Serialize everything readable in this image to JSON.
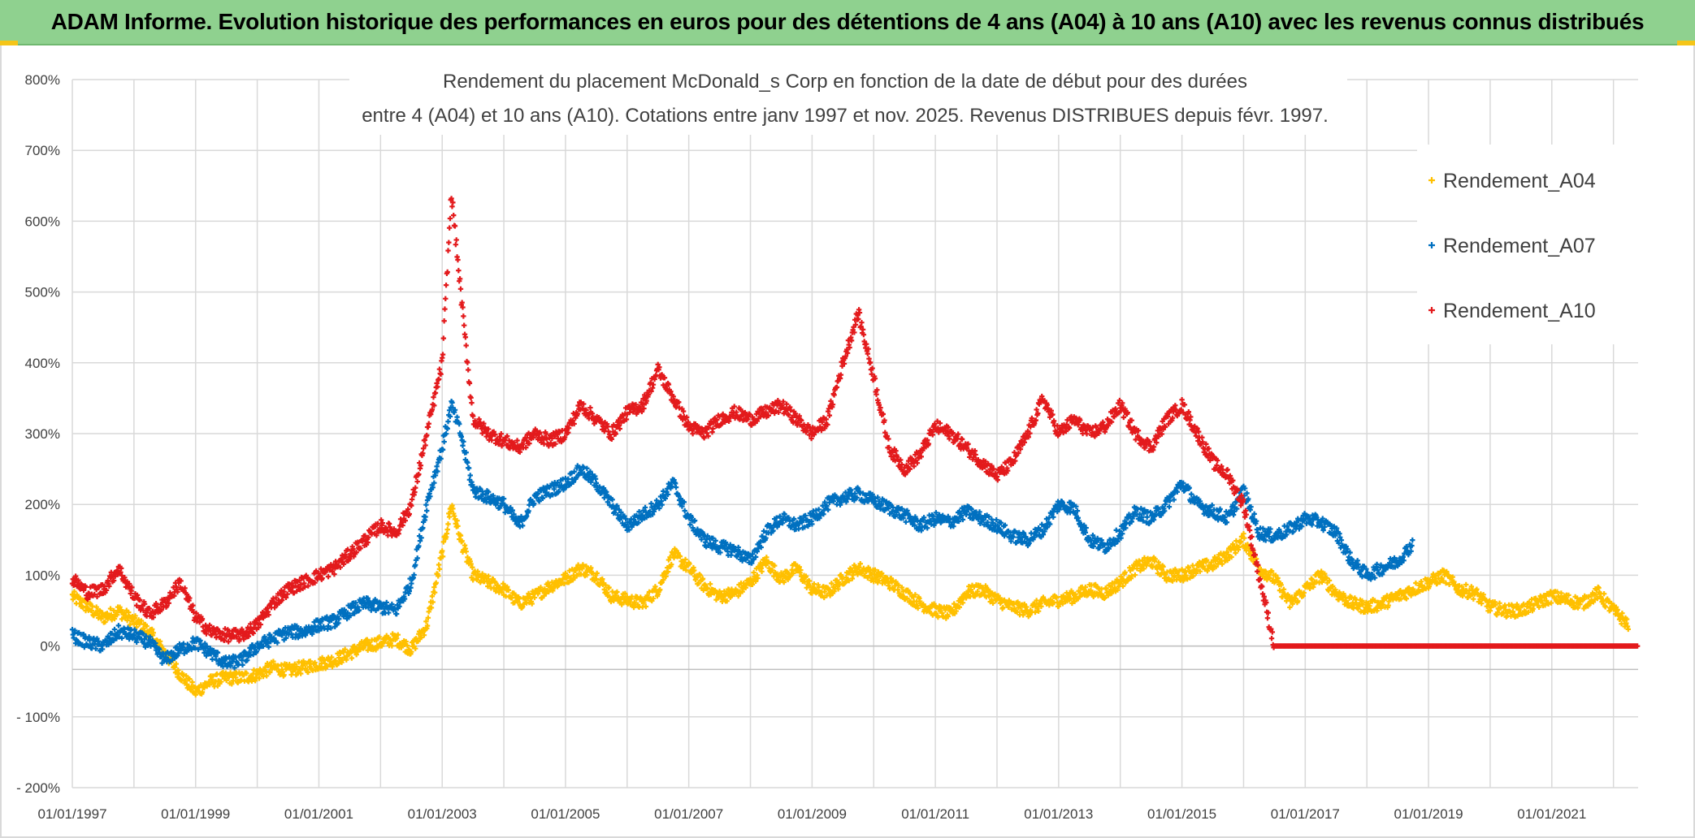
{
  "banner": {
    "text": "ADAM Informe. Evolution historique des performances en euros pour des détentions de 4 ans (A04) à 10 ans (A10) avec les revenus connus distribués"
  },
  "chart_data": {
    "type": "scatter",
    "title_lines": [
      "Rendement du placement McDonald_s Corp en fonction de la date de début pour des durées",
      "entre 4 (A04) et 10 ans (A10). Cotations entre janv 1997 et nov. 2025. Revenus DISTRIBUES depuis févr. 1997."
    ],
    "xlabel": "",
    "ylabel": "",
    "xlim": [
      1997.0,
      2022.4
    ],
    "ylim": [
      -200,
      800
    ],
    "x_tick_labels": [
      "01/01/1997",
      "01/01/1999",
      "01/01/2001",
      "01/01/2003",
      "01/01/2005",
      "01/01/2007",
      "01/01/2009",
      "01/01/2011",
      "01/01/2013",
      "01/01/2015",
      "01/01/2017",
      "01/01/2019",
      "01/01/2021"
    ],
    "x_ticks": [
      1997,
      1999,
      2001,
      2003,
      2005,
      2007,
      2009,
      2011,
      2013,
      2015,
      2017,
      2019,
      2021
    ],
    "minor_x_gridlines": [
      1998,
      2000,
      2002,
      2004,
      2006,
      2008,
      2010,
      2012,
      2014,
      2016,
      2018,
      2020,
      2022
    ],
    "y_ticks": [
      800,
      700,
      600,
      500,
      400,
      300,
      200,
      100,
      0,
      -100,
      -200
    ],
    "y_tick_labels": [
      "800%",
      "700%",
      "600%",
      "500%",
      "400%",
      "300%",
      "200%",
      "100%",
      "0%",
      "- 100%",
      "- 200%"
    ],
    "legend_position": "top-right",
    "series": [
      {
        "name": "Rendement_A04",
        "color": "#ffc000",
        "x": [
          1997.0,
          1997.25,
          1997.5,
          1997.75,
          1998.0,
          1998.25,
          1998.5,
          1998.75,
          1999.0,
          1999.25,
          1999.5,
          1999.75,
          2000.0,
          2000.25,
          2000.5,
          2000.75,
          2001.0,
          2001.25,
          2001.5,
          2001.75,
          2002.0,
          2002.25,
          2002.5,
          2002.75,
          2003.0,
          2003.15,
          2003.3,
          2003.5,
          2003.75,
          2004.0,
          2004.25,
          2004.5,
          2004.75,
          2005.0,
          2005.25,
          2005.5,
          2005.75,
          2006.0,
          2006.25,
          2006.5,
          2006.75,
          2007.0,
          2007.25,
          2007.5,
          2007.75,
          2008.0,
          2008.25,
          2008.5,
          2008.75,
          2009.0,
          2009.25,
          2009.5,
          2009.75,
          2010.0,
          2010.25,
          2010.5,
          2010.75,
          2011.0,
          2011.25,
          2011.5,
          2011.75,
          2012.0,
          2012.25,
          2012.5,
          2012.75,
          2013.0,
          2013.25,
          2013.5,
          2013.75,
          2014.0,
          2014.25,
          2014.5,
          2014.75,
          2015.0,
          2015.25,
          2015.5,
          2015.75,
          2016.0,
          2016.25,
          2016.5,
          2016.75,
          2017.0,
          2017.25,
          2017.5,
          2017.75,
          2018.0,
          2018.25,
          2018.5,
          2018.75,
          2019.0,
          2019.25,
          2019.5,
          2019.75,
          2020.0,
          2020.25,
          2020.5,
          2020.75,
          2021.0,
          2021.25,
          2021.5,
          2021.75,
          2022.0,
          2022.25
        ],
        "y": [
          70,
          55,
          40,
          50,
          35,
          20,
          -10,
          -40,
          -65,
          -50,
          -45,
          -45,
          -40,
          -30,
          -35,
          -30,
          -25,
          -20,
          -10,
          0,
          5,
          10,
          -5,
          30,
          130,
          200,
          150,
          100,
          90,
          80,
          60,
          70,
          85,
          95,
          110,
          100,
          70,
          65,
          60,
          80,
          130,
          110,
          85,
          70,
          75,
          90,
          120,
          95,
          110,
          80,
          75,
          95,
          110,
          100,
          90,
          75,
          60,
          50,
          45,
          75,
          80,
          65,
          55,
          50,
          60,
          65,
          70,
          80,
          75,
          90,
          110,
          120,
          100,
          100,
          110,
          115,
          130,
          150,
          110,
          95,
          60,
          80,
          100,
          75,
          60,
          55,
          60,
          70,
          80,
          90,
          100,
          80,
          75,
          55,
          50,
          50,
          60,
          70,
          65,
          60,
          75,
          50,
          30
        ]
      },
      {
        "name": "Rendement_A07",
        "color": "#0070c0",
        "x": [
          1997.0,
          1997.25,
          1997.5,
          1997.75,
          1998.0,
          1998.25,
          1998.5,
          1998.75,
          1999.0,
          1999.25,
          1999.5,
          1999.75,
          2000.0,
          2000.25,
          2000.5,
          2000.75,
          2001.0,
          2001.25,
          2001.5,
          2001.75,
          2002.0,
          2002.25,
          2002.5,
          2002.75,
          2003.0,
          2003.15,
          2003.3,
          2003.5,
          2003.75,
          2004.0,
          2004.25,
          2004.5,
          2004.75,
          2005.0,
          2005.25,
          2005.5,
          2005.75,
          2006.0,
          2006.25,
          2006.5,
          2006.75,
          2007.0,
          2007.25,
          2007.5,
          2007.75,
          2008.0,
          2008.25,
          2008.5,
          2008.75,
          2009.0,
          2009.25,
          2009.5,
          2009.75,
          2010.0,
          2010.25,
          2010.5,
          2010.75,
          2011.0,
          2011.25,
          2011.5,
          2011.75,
          2012.0,
          2012.25,
          2012.5,
          2012.75,
          2013.0,
          2013.25,
          2013.5,
          2013.75,
          2014.0,
          2014.25,
          2014.5,
          2014.75,
          2015.0,
          2015.25,
          2015.5,
          2015.75,
          2016.0,
          2016.25,
          2016.5,
          2016.75,
          2017.0,
          2017.25,
          2017.5,
          2017.75,
          2018.0,
          2018.25,
          2018.5,
          2018.75
        ],
        "y": [
          15,
          5,
          0,
          20,
          15,
          5,
          -20,
          -5,
          5,
          -10,
          -25,
          -20,
          0,
          10,
          20,
          20,
          30,
          35,
          50,
          60,
          55,
          50,
          90,
          200,
          280,
          340,
          300,
          220,
          210,
          200,
          170,
          210,
          220,
          230,
          250,
          230,
          200,
          170,
          185,
          200,
          230,
          180,
          150,
          140,
          135,
          120,
          160,
          180,
          170,
          180,
          200,
          210,
          215,
          205,
          195,
          185,
          170,
          180,
          175,
          190,
          180,
          170,
          155,
          150,
          165,
          200,
          195,
          150,
          140,
          160,
          190,
          180,
          200,
          230,
          200,
          190,
          180,
          220,
          160,
          155,
          165,
          180,
          175,
          160,
          120,
          100,
          110,
          120,
          145
        ]
      },
      {
        "name": "Rendement_A10",
        "color": "#e31a1c",
        "x": [
          1997.0,
          1997.25,
          1997.5,
          1997.75,
          1998.0,
          1998.25,
          1998.5,
          1998.75,
          1999.0,
          1999.25,
          1999.5,
          1999.75,
          2000.0,
          2000.25,
          2000.5,
          2000.75,
          2001.0,
          2001.25,
          2001.5,
          2001.75,
          2002.0,
          2002.25,
          2002.5,
          2002.75,
          2003.0,
          2003.15,
          2003.3,
          2003.5,
          2003.75,
          2004.0,
          2004.25,
          2004.5,
          2004.75,
          2005.0,
          2005.25,
          2005.5,
          2005.75,
          2006.0,
          2006.25,
          2006.5,
          2006.75,
          2007.0,
          2007.25,
          2007.5,
          2007.75,
          2008.0,
          2008.25,
          2008.5,
          2008.75,
          2009.0,
          2009.25,
          2009.5,
          2009.75,
          2010.0,
          2010.25,
          2010.5,
          2010.75,
          2011.0,
          2011.25,
          2011.5,
          2011.75,
          2012.0,
          2012.25,
          2012.5,
          2012.75,
          2013.0,
          2013.25,
          2013.5,
          2013.75,
          2014.0,
          2014.25,
          2014.5,
          2014.75,
          2015.0,
          2015.25,
          2015.5,
          2015.75,
          2016.0,
          2016.5,
          2017.0,
          2017.5,
          2018.0,
          2018.5,
          2019.0,
          2019.5,
          2020.0,
          2020.5,
          2021.0,
          2021.5,
          2022.0,
          2022.4
        ],
        "y": [
          95,
          75,
          80,
          110,
          70,
          45,
          60,
          90,
          40,
          20,
          15,
          15,
          30,
          60,
          80,
          90,
          100,
          110,
          130,
          150,
          170,
          160,
          200,
          300,
          400,
          640,
          500,
          320,
          300,
          290,
          280,
          300,
          290,
          300,
          340,
          320,
          300,
          330,
          340,
          390,
          350,
          310,
          300,
          320,
          330,
          320,
          330,
          340,
          320,
          300,
          320,
          400,
          470,
          380,
          280,
          250,
          270,
          310,
          300,
          280,
          260,
          240,
          260,
          300,
          350,
          300,
          320,
          300,
          310,
          340,
          300,
          280,
          320,
          340,
          300,
          260,
          240,
          200,
          0,
          0,
          0,
          0,
          0,
          0,
          0,
          0,
          0,
          0,
          0,
          0,
          0
        ]
      }
    ]
  }
}
